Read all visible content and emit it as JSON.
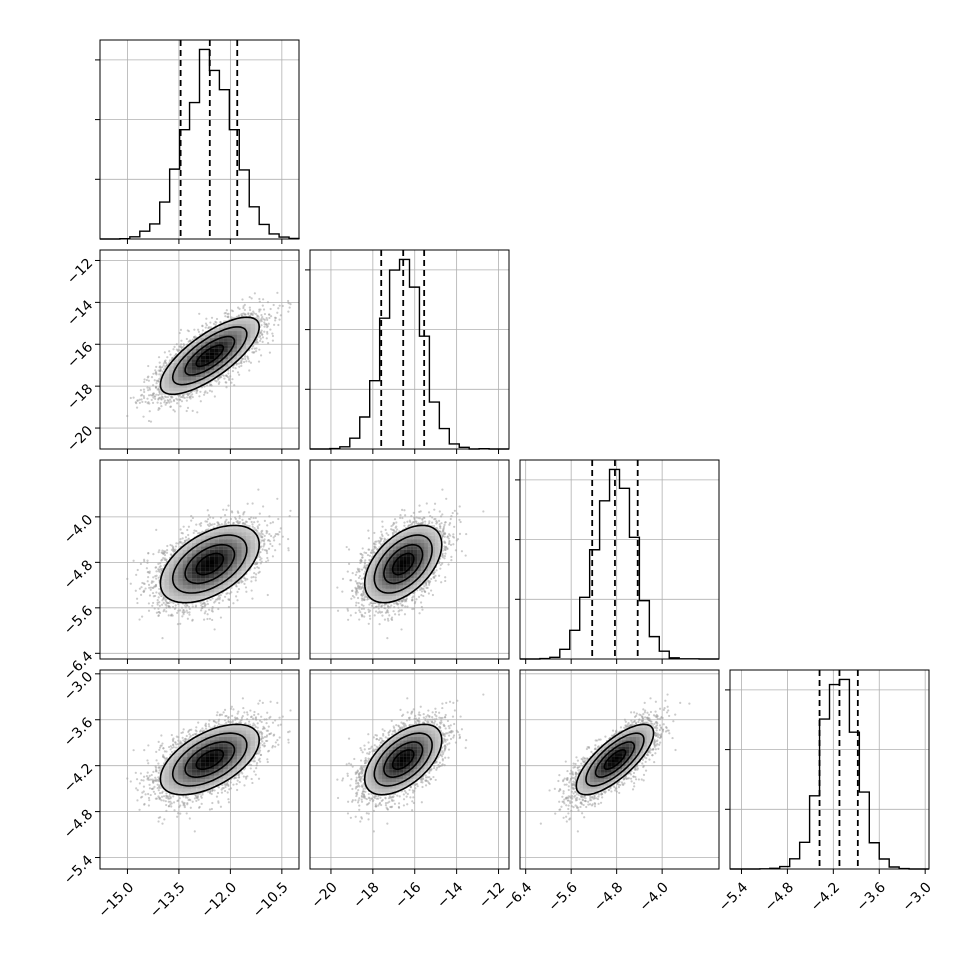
{
  "chart_data": {
    "type": "corner",
    "parameters": [
      "",
      "",
      "",
      ""
    ],
    "ranges": [
      [
        -15.8,
        -10.0
      ],
      [
        -21.0,
        -11.5
      ],
      [
        -6.5,
        -3.0
      ],
      [
        -5.55,
        -2.95
      ]
    ],
    "ticks": [
      [
        -15.0,
        -13.5,
        -12.0,
        -10.5
      ],
      [
        -20,
        -18,
        -16,
        -14,
        -12
      ],
      [
        -6.4,
        -5.6,
        -4.8,
        -4.0
      ],
      [
        -5.4,
        -4.8,
        -4.2,
        -3.6,
        -3.0
      ]
    ],
    "tick_labels": [
      [
        "−15.0",
        "−13.5",
        "−12.0",
        "−10.5"
      ],
      [
        "−20",
        "−18",
        "−16",
        "−14",
        "−12"
      ],
      [
        "−6.4",
        "−5.6",
        "−4.8",
        "−4.0"
      ],
      [
        "−5.4",
        "−4.8",
        "−4.2",
        "−3.6",
        "−3.0"
      ]
    ],
    "y_tick_labels": [
      [],
      [
        "−20",
        "−18",
        "−16",
        "−14",
        "−12"
      ],
      [
        "−6.4",
        "−5.6",
        "−4.8",
        "−4.0"
      ],
      [
        "−5.4",
        "−4.8",
        "−4.2",
        "−3.6",
        "−3.0"
      ]
    ],
    "quantiles": [
      [
        -13.45,
        -12.6,
        -11.8
      ],
      [
        -17.6,
        -16.55,
        -15.55
      ],
      [
        -5.23,
        -4.83,
        -4.43
      ],
      [
        -4.38,
        -4.12,
        -3.88
      ]
    ],
    "means": [
      -12.6,
      -16.55,
      -4.83,
      -4.12
    ],
    "sigmas": [
      0.72,
      0.92,
      0.34,
      0.23
    ],
    "correlations": [
      [
        1,
        0.75,
        0.5,
        0.55
      ],
      [
        0.75,
        1,
        0.5,
        0.55
      ],
      [
        0.5,
        0.5,
        1,
        0.75
      ],
      [
        0.55,
        0.55,
        0.75,
        1
      ]
    ],
    "histogram_bins": 20,
    "grid": true,
    "quantile_line_style": "dashed",
    "contour_levels": [
      "0.5 sigma",
      "1 sigma",
      "1.5 sigma",
      "2 sigma"
    ],
    "colors": {
      "line": "#000000",
      "grid": "#b0b0b0",
      "points": "#a0a0a0",
      "background": "#ffffff"
    }
  }
}
